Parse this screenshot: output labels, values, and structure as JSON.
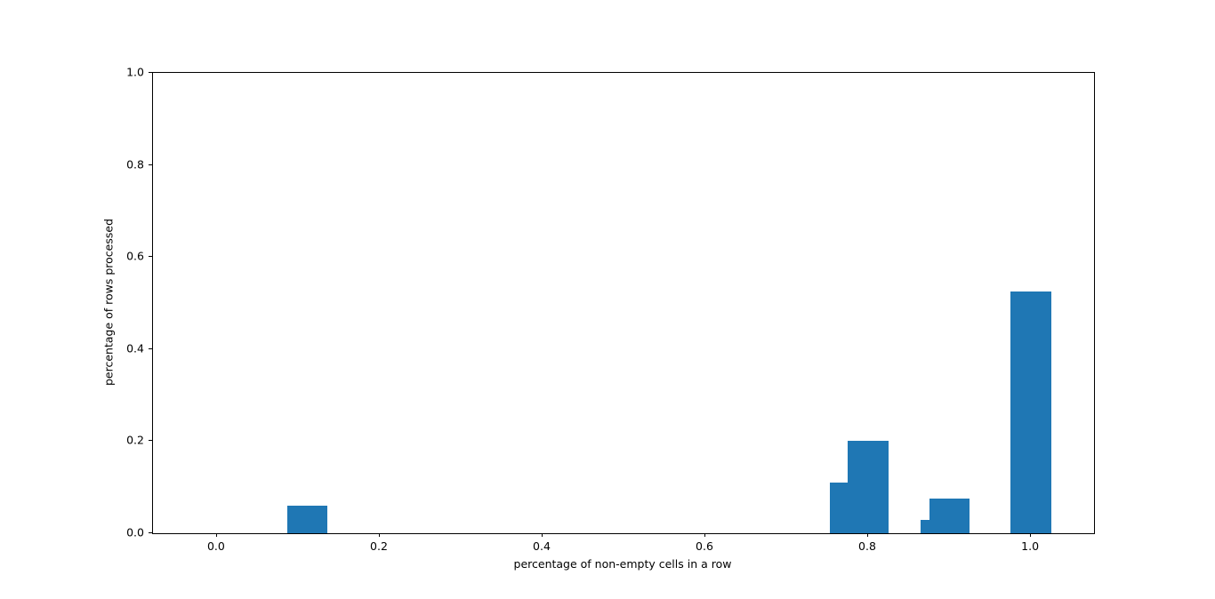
{
  "chart_data": {
    "type": "bar",
    "x": [
      0.1111,
      0.7778,
      0.8,
      0.8889,
      0.9,
      1.0
    ],
    "values": [
      0.06,
      0.11,
      0.2,
      0.03,
      0.075,
      0.525
    ],
    "bar_width": 0.05,
    "bar_color": "#1f77b4",
    "title": "",
    "xlabel": "percentage of non-empty cells in a row",
    "ylabel": "percentage of rows processed",
    "xlim": [
      -0.0786,
      1.0775
    ],
    "ylim": [
      0.0,
      1.0
    ],
    "xticks": [
      0.0,
      0.2,
      0.4,
      0.6,
      0.8,
      1.0
    ],
    "xtick_labels": [
      "0.0",
      "0.2",
      "0.4",
      "0.6",
      "0.8",
      "1.0"
    ],
    "yticks": [
      0.0,
      0.2,
      0.4,
      0.6,
      0.8,
      1.0
    ],
    "ytick_labels": [
      "0.0",
      "0.2",
      "0.4",
      "0.6",
      "0.8",
      "1.0"
    ],
    "grid": false,
    "legend": null,
    "axis_color": "#000000",
    "background_color": "#ffffff"
  }
}
